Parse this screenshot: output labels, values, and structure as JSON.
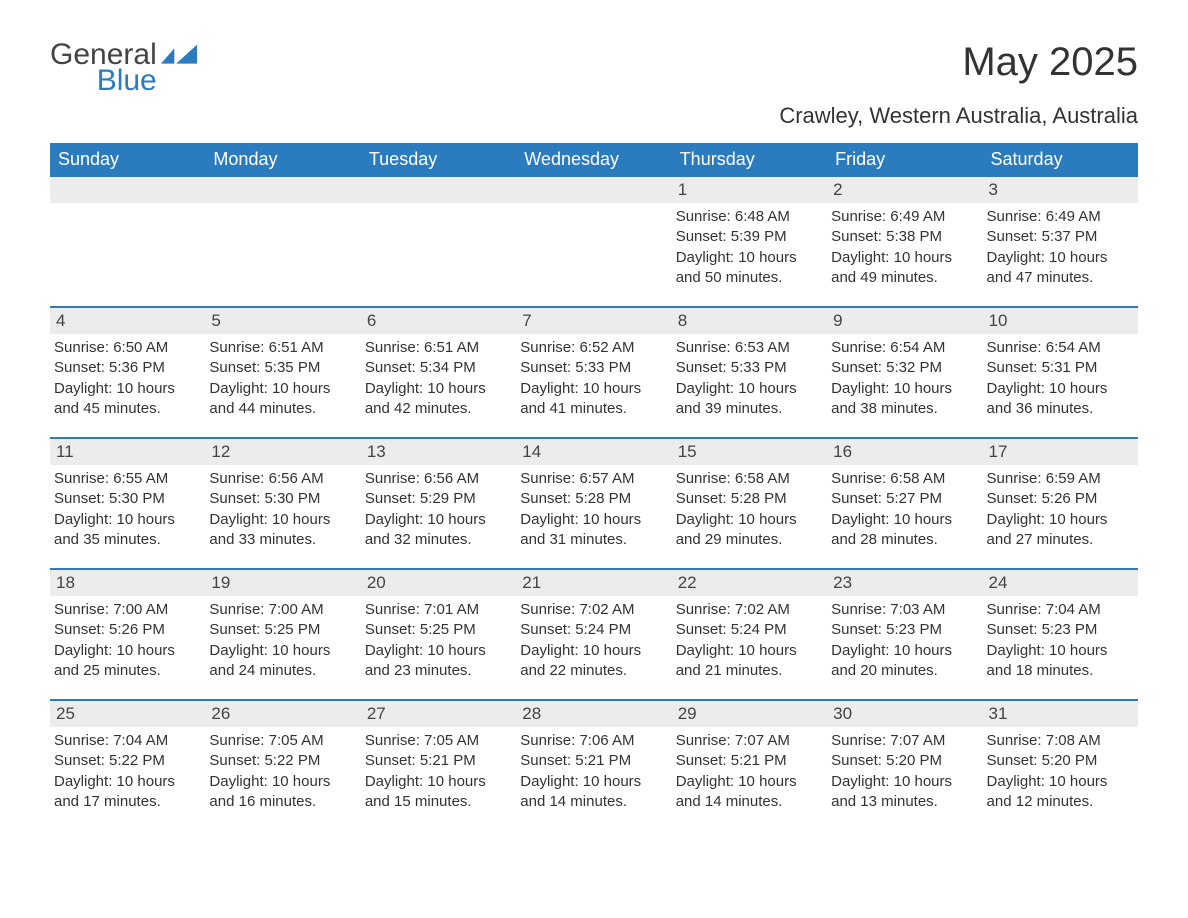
{
  "logo": {
    "word1": "General",
    "word2": "Blue"
  },
  "title": "May 2025",
  "location": "Crawley, Western Australia, Australia",
  "colors": {
    "header_bg": "#2b7bbf",
    "header_text": "#ffffff",
    "day_number_bg": "#ececec",
    "border": "#2b7bbf",
    "text": "#333333",
    "logo_blue": "#2b7bbf"
  },
  "weekdays": [
    "Sunday",
    "Monday",
    "Tuesday",
    "Wednesday",
    "Thursday",
    "Friday",
    "Saturday"
  ],
  "weeks": [
    [
      {
        "n": "",
        "sunrise": "",
        "sunset": "",
        "daylight": ""
      },
      {
        "n": "",
        "sunrise": "",
        "sunset": "",
        "daylight": ""
      },
      {
        "n": "",
        "sunrise": "",
        "sunset": "",
        "daylight": ""
      },
      {
        "n": "",
        "sunrise": "",
        "sunset": "",
        "daylight": ""
      },
      {
        "n": "1",
        "sunrise": "Sunrise: 6:48 AM",
        "sunset": "Sunset: 5:39 PM",
        "daylight": "Daylight: 10 hours and 50 minutes."
      },
      {
        "n": "2",
        "sunrise": "Sunrise: 6:49 AM",
        "sunset": "Sunset: 5:38 PM",
        "daylight": "Daylight: 10 hours and 49 minutes."
      },
      {
        "n": "3",
        "sunrise": "Sunrise: 6:49 AM",
        "sunset": "Sunset: 5:37 PM",
        "daylight": "Daylight: 10 hours and 47 minutes."
      }
    ],
    [
      {
        "n": "4",
        "sunrise": "Sunrise: 6:50 AM",
        "sunset": "Sunset: 5:36 PM",
        "daylight": "Daylight: 10 hours and 45 minutes."
      },
      {
        "n": "5",
        "sunrise": "Sunrise: 6:51 AM",
        "sunset": "Sunset: 5:35 PM",
        "daylight": "Daylight: 10 hours and 44 minutes."
      },
      {
        "n": "6",
        "sunrise": "Sunrise: 6:51 AM",
        "sunset": "Sunset: 5:34 PM",
        "daylight": "Daylight: 10 hours and 42 minutes."
      },
      {
        "n": "7",
        "sunrise": "Sunrise: 6:52 AM",
        "sunset": "Sunset: 5:33 PM",
        "daylight": "Daylight: 10 hours and 41 minutes."
      },
      {
        "n": "8",
        "sunrise": "Sunrise: 6:53 AM",
        "sunset": "Sunset: 5:33 PM",
        "daylight": "Daylight: 10 hours and 39 minutes."
      },
      {
        "n": "9",
        "sunrise": "Sunrise: 6:54 AM",
        "sunset": "Sunset: 5:32 PM",
        "daylight": "Daylight: 10 hours and 38 minutes."
      },
      {
        "n": "10",
        "sunrise": "Sunrise: 6:54 AM",
        "sunset": "Sunset: 5:31 PM",
        "daylight": "Daylight: 10 hours and 36 minutes."
      }
    ],
    [
      {
        "n": "11",
        "sunrise": "Sunrise: 6:55 AM",
        "sunset": "Sunset: 5:30 PM",
        "daylight": "Daylight: 10 hours and 35 minutes."
      },
      {
        "n": "12",
        "sunrise": "Sunrise: 6:56 AM",
        "sunset": "Sunset: 5:30 PM",
        "daylight": "Daylight: 10 hours and 33 minutes."
      },
      {
        "n": "13",
        "sunrise": "Sunrise: 6:56 AM",
        "sunset": "Sunset: 5:29 PM",
        "daylight": "Daylight: 10 hours and 32 minutes."
      },
      {
        "n": "14",
        "sunrise": "Sunrise: 6:57 AM",
        "sunset": "Sunset: 5:28 PM",
        "daylight": "Daylight: 10 hours and 31 minutes."
      },
      {
        "n": "15",
        "sunrise": "Sunrise: 6:58 AM",
        "sunset": "Sunset: 5:28 PM",
        "daylight": "Daylight: 10 hours and 29 minutes."
      },
      {
        "n": "16",
        "sunrise": "Sunrise: 6:58 AM",
        "sunset": "Sunset: 5:27 PM",
        "daylight": "Daylight: 10 hours and 28 minutes."
      },
      {
        "n": "17",
        "sunrise": "Sunrise: 6:59 AM",
        "sunset": "Sunset: 5:26 PM",
        "daylight": "Daylight: 10 hours and 27 minutes."
      }
    ],
    [
      {
        "n": "18",
        "sunrise": "Sunrise: 7:00 AM",
        "sunset": "Sunset: 5:26 PM",
        "daylight": "Daylight: 10 hours and 25 minutes."
      },
      {
        "n": "19",
        "sunrise": "Sunrise: 7:00 AM",
        "sunset": "Sunset: 5:25 PM",
        "daylight": "Daylight: 10 hours and 24 minutes."
      },
      {
        "n": "20",
        "sunrise": "Sunrise: 7:01 AM",
        "sunset": "Sunset: 5:25 PM",
        "daylight": "Daylight: 10 hours and 23 minutes."
      },
      {
        "n": "21",
        "sunrise": "Sunrise: 7:02 AM",
        "sunset": "Sunset: 5:24 PM",
        "daylight": "Daylight: 10 hours and 22 minutes."
      },
      {
        "n": "22",
        "sunrise": "Sunrise: 7:02 AM",
        "sunset": "Sunset: 5:24 PM",
        "daylight": "Daylight: 10 hours and 21 minutes."
      },
      {
        "n": "23",
        "sunrise": "Sunrise: 7:03 AM",
        "sunset": "Sunset: 5:23 PM",
        "daylight": "Daylight: 10 hours and 20 minutes."
      },
      {
        "n": "24",
        "sunrise": "Sunrise: 7:04 AM",
        "sunset": "Sunset: 5:23 PM",
        "daylight": "Daylight: 10 hours and 18 minutes."
      }
    ],
    [
      {
        "n": "25",
        "sunrise": "Sunrise: 7:04 AM",
        "sunset": "Sunset: 5:22 PM",
        "daylight": "Daylight: 10 hours and 17 minutes."
      },
      {
        "n": "26",
        "sunrise": "Sunrise: 7:05 AM",
        "sunset": "Sunset: 5:22 PM",
        "daylight": "Daylight: 10 hours and 16 minutes."
      },
      {
        "n": "27",
        "sunrise": "Sunrise: 7:05 AM",
        "sunset": "Sunset: 5:21 PM",
        "daylight": "Daylight: 10 hours and 15 minutes."
      },
      {
        "n": "28",
        "sunrise": "Sunrise: 7:06 AM",
        "sunset": "Sunset: 5:21 PM",
        "daylight": "Daylight: 10 hours and 14 minutes."
      },
      {
        "n": "29",
        "sunrise": "Sunrise: 7:07 AM",
        "sunset": "Sunset: 5:21 PM",
        "daylight": "Daylight: 10 hours and 14 minutes."
      },
      {
        "n": "30",
        "sunrise": "Sunrise: 7:07 AM",
        "sunset": "Sunset: 5:20 PM",
        "daylight": "Daylight: 10 hours and 13 minutes."
      },
      {
        "n": "31",
        "sunrise": "Sunrise: 7:08 AM",
        "sunset": "Sunset: 5:20 PM",
        "daylight": "Daylight: 10 hours and 12 minutes."
      }
    ]
  ]
}
